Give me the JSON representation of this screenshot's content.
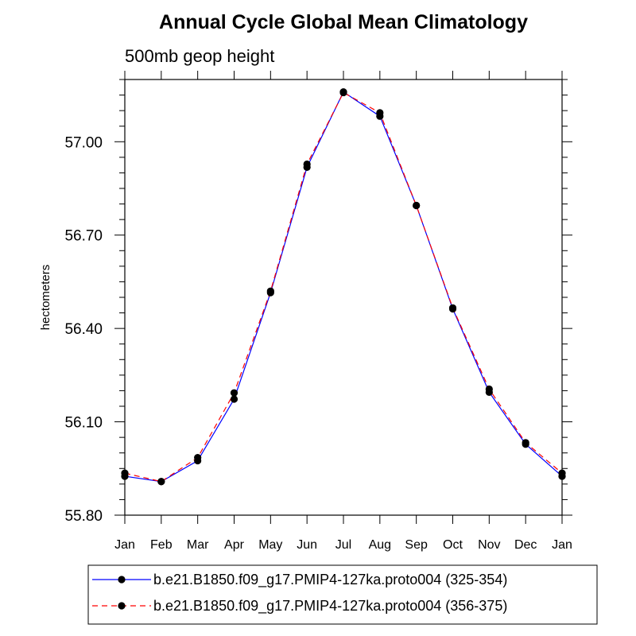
{
  "chart_data": {
    "type": "line",
    "title": "Annual Cycle Global Mean Climatology",
    "subtitle": "500mb geop height",
    "xlabel": "",
    "ylabel": "hectometers",
    "categories": [
      "Jan",
      "Feb",
      "Mar",
      "Apr",
      "May",
      "Jun",
      "Jul",
      "Aug",
      "Sep",
      "Oct",
      "Nov",
      "Dec",
      "Jan"
    ],
    "ylim": [
      55.8,
      57.2
    ],
    "yticks": [
      55.8,
      56.1,
      56.4,
      56.7,
      57.0
    ],
    "ytick_labels": [
      "55.80",
      "56.10",
      "56.40",
      "56.70",
      "57.00"
    ],
    "legend_position": "bottom",
    "series": [
      {
        "name": "b.e21.B1850.f09_g17.PMIP4-127ka.proto004 (325-354)",
        "color": "#0000ff",
        "line_style": "solid",
        "marker": "filled-circle",
        "values": [
          55.925,
          55.908,
          55.975,
          56.173,
          56.515,
          56.918,
          57.16,
          57.082,
          56.795,
          56.463,
          56.195,
          56.028,
          55.925
        ]
      },
      {
        "name": "b.e21.B1850.f09_g17.PMIP4-127ka.proto004 (356-375)",
        "color": "#ff0000",
        "line_style": "dashed",
        "marker": "filled-circle",
        "values": [
          55.935,
          55.908,
          55.985,
          56.193,
          56.52,
          56.928,
          57.158,
          57.093,
          56.795,
          56.466,
          56.205,
          56.033,
          55.935
        ]
      }
    ]
  }
}
